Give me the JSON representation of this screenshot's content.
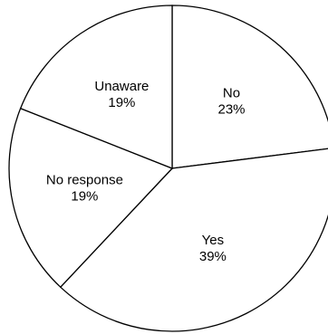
{
  "chart_data": {
    "type": "pie",
    "title": "",
    "slices": [
      {
        "label": "No",
        "value": 23,
        "value_label": "23%"
      },
      {
        "label": "Yes",
        "value": 39,
        "value_label": "39%"
      },
      {
        "label": "No response",
        "value": 19,
        "value_label": "19%"
      },
      {
        "label": "Unaware",
        "value": 19,
        "value_label": "19%"
      }
    ],
    "start_angle_deg": 0,
    "direction": "clockwise",
    "legend": "none",
    "colors": {
      "fill": "#ffffff",
      "stroke": "#000000"
    }
  }
}
